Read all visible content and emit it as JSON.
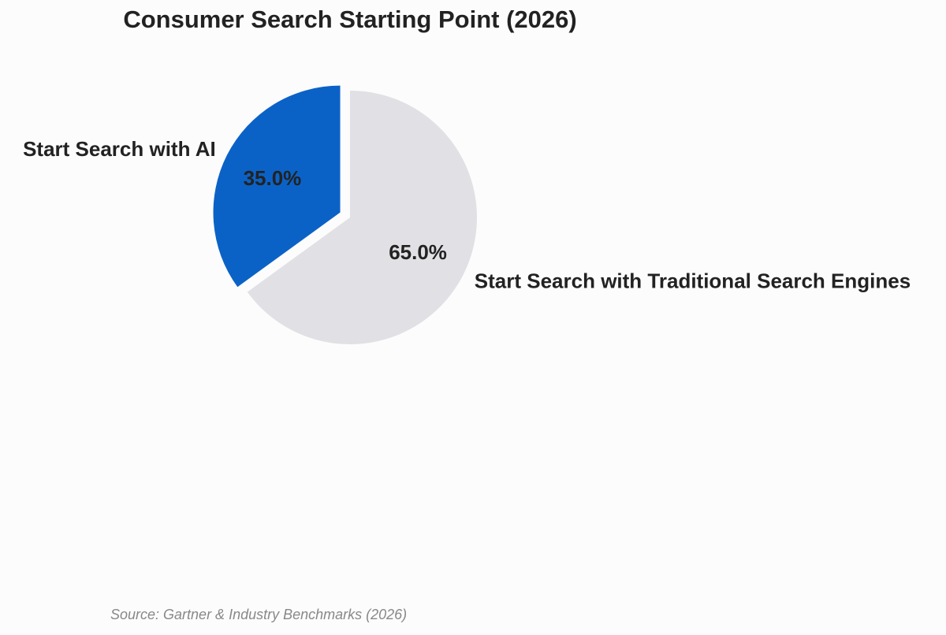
{
  "chart_data": {
    "type": "pie",
    "title": "Consumer Search Starting Point (2026)",
    "slices": [
      {
        "label": "Start Search with AI",
        "value": 35.0,
        "pct_label": "35.0%",
        "color": "#0b62c6",
        "exploded": true
      },
      {
        "label": "Start Search with Traditional Search Engines",
        "value": 65.0,
        "pct_label": "65.0%",
        "color": "#e1e0e4",
        "exploded": false
      }
    ],
    "start_angle_deg": 90,
    "direction": "counterclockwise",
    "source": "Source: Gartner & Industry Benchmarks (2026)"
  }
}
